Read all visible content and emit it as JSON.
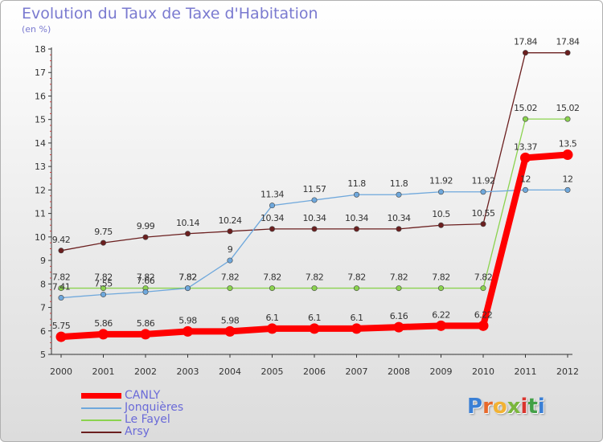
{
  "title": "Evolution du Taux de Taxe d'Habitation",
  "unit_label": "(en %)",
  "logo": {
    "text": "Proxiti",
    "letter_colors": [
      "#3a7fd5",
      "#e8682a",
      "#f2b233",
      "#7ab63c",
      "#d9352f",
      "#43a047",
      "#3a7fd5"
    ]
  },
  "chart_data": {
    "type": "line",
    "title": "Evolution du Taux de Taxe d'Habitation",
    "ylabel": "(en %)",
    "xlabel": "",
    "x": [
      "2000",
      "2001",
      "2002",
      "2003",
      "2004",
      "2005",
      "2006",
      "2007",
      "2008",
      "2009",
      "2010",
      "2011",
      "2012"
    ],
    "ylim": [
      5,
      18
    ],
    "yticks": [
      "5",
      "6",
      "7",
      "8",
      "9",
      "10",
      "11",
      "12",
      "13",
      "14",
      "15",
      "16",
      "17",
      "18"
    ],
    "grid": false,
    "legend_position": "bottom-left",
    "series": [
      {
        "name": "Arsy",
        "color": "#6b1f1f",
        "values": [
          9.42,
          9.75,
          9.99,
          10.14,
          10.24,
          10.34,
          10.34,
          10.34,
          10.34,
          10.5,
          10.55,
          17.84,
          17.84
        ],
        "labels": [
          "9.42",
          "9.75",
          "9.99",
          "10.14",
          "10.24",
          "10.34",
          "10.34",
          "10.34",
          "10.34",
          "10.5",
          "10.55",
          "17.84",
          "17.84"
        ]
      },
      {
        "name": "Le Fayel",
        "color": "#8bd34f",
        "values": [
          7.82,
          7.82,
          7.82,
          7.82,
          7.82,
          7.82,
          7.82,
          7.82,
          7.82,
          7.82,
          7.82,
          15.02,
          15.02
        ],
        "labels": [
          "7.82",
          "7.82",
          "7.82",
          "7.82",
          "7.82",
          "7.82",
          "7.82",
          "7.82",
          "7.82",
          "7.82",
          "7.82",
          "15.02",
          "15.02"
        ]
      },
      {
        "name": "Jonquières",
        "color": "#6fa8dc",
        "values": [
          7.41,
          7.55,
          7.66,
          7.82,
          9,
          11.34,
          11.57,
          11.8,
          11.8,
          11.92,
          11.92,
          12,
          12
        ],
        "labels": [
          "7.41",
          "7.55",
          "7.66",
          "7.82",
          "9",
          "11.34",
          "11.57",
          "11.8",
          "11.8",
          "11.92",
          "11.92",
          "12",
          "12"
        ]
      },
      {
        "name": "CANLY",
        "color": "#ff0000",
        "values": [
          5.75,
          5.86,
          5.86,
          5.98,
          5.98,
          6.1,
          6.1,
          6.1,
          6.16,
          6.22,
          6.22,
          13.37,
          13.5
        ],
        "labels": [
          "5.75",
          "5.86",
          "5.86",
          "5.98",
          "5.98",
          "6.1",
          "6.1",
          "6.1",
          "6.16",
          "6.22",
          "6.22",
          "13.37",
          "13.5"
        ]
      }
    ],
    "legend": [
      "CANLY",
      "Jonquières",
      "Le Fayel",
      "Arsy"
    ]
  }
}
